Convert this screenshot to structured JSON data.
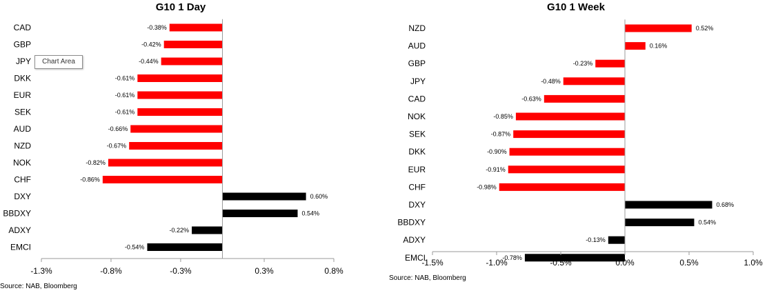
{
  "colors": {
    "negative": "#ff0000",
    "positive": "#ff0000",
    "index": "#000000",
    "axis": "#999999"
  },
  "tooltip": {
    "text": "Chart Area"
  },
  "chart_data": [
    {
      "type": "bar",
      "orientation": "horizontal",
      "title": "G10 1 Day",
      "source": "Source: NAB, Bloomberg",
      "categories": [
        "CAD",
        "GBP",
        "JPY",
        "DKK",
        "EUR",
        "SEK",
        "AUD",
        "NZD",
        "NOK",
        "CHF",
        "DXY",
        "BBDXY",
        "ADXY",
        "EMCI"
      ],
      "values": [
        -0.38,
        -0.42,
        -0.44,
        -0.61,
        -0.61,
        -0.61,
        -0.66,
        -0.67,
        -0.82,
        -0.86,
        0.6,
        0.54,
        -0.22,
        -0.54
      ],
      "value_labels": [
        "-0.38%",
        "-0.42%",
        "-0.44%",
        "-0.61%",
        "-0.61%",
        "-0.61%",
        "-0.66%",
        "-0.67%",
        "-0.82%",
        "-0.86%",
        "0.60%",
        "0.54%",
        "-0.22%",
        "-0.54%"
      ],
      "bar_colors": [
        "red",
        "red",
        "red",
        "red",
        "red",
        "red",
        "red",
        "red",
        "red",
        "red",
        "black",
        "black",
        "black",
        "black"
      ],
      "xlim": [
        -1.3,
        0.8
      ],
      "xticks": [
        -1.3,
        -0.8,
        -0.3,
        0.3,
        0.8
      ],
      "xtick_labels": [
        "-1.3%",
        "-0.8%",
        "-0.3%",
        "0.3%",
        "0.8%"
      ],
      "grid": false
    },
    {
      "type": "bar",
      "orientation": "horizontal",
      "title": "G10 1 Week",
      "source": "Source: NAB, Bloomberg",
      "categories": [
        "NZD",
        "AUD",
        "GBP",
        "JPY",
        "CAD",
        "NOK",
        "SEK",
        "DKK",
        "EUR",
        "CHF",
        "DXY",
        "BBDXY",
        "ADXY",
        "EMCI"
      ],
      "values": [
        0.52,
        0.16,
        -0.23,
        -0.48,
        -0.63,
        -0.85,
        -0.87,
        -0.9,
        -0.91,
        -0.98,
        0.68,
        0.54,
        -0.13,
        -0.78
      ],
      "value_labels": [
        "0.52%",
        "0.16%",
        "-0.23%",
        "-0.48%",
        "-0.63%",
        "-0.85%",
        "-0.87%",
        "-0.90%",
        "-0.91%",
        "-0.98%",
        "0.68%",
        "0.54%",
        "-0.13%",
        "-0.78%"
      ],
      "bar_colors": [
        "red",
        "red",
        "red",
        "red",
        "red",
        "red",
        "red",
        "red",
        "red",
        "red",
        "black",
        "black",
        "black",
        "black"
      ],
      "xlim": [
        -1.5,
        1.0
      ],
      "xticks": [
        -1.5,
        -1.0,
        -0.5,
        0.0,
        0.5,
        1.0
      ],
      "xtick_labels": [
        "-1.5%",
        "-1.0%",
        "-0.5%",
        "0.0%",
        "0.5%",
        "1.0%"
      ],
      "grid": false
    }
  ]
}
